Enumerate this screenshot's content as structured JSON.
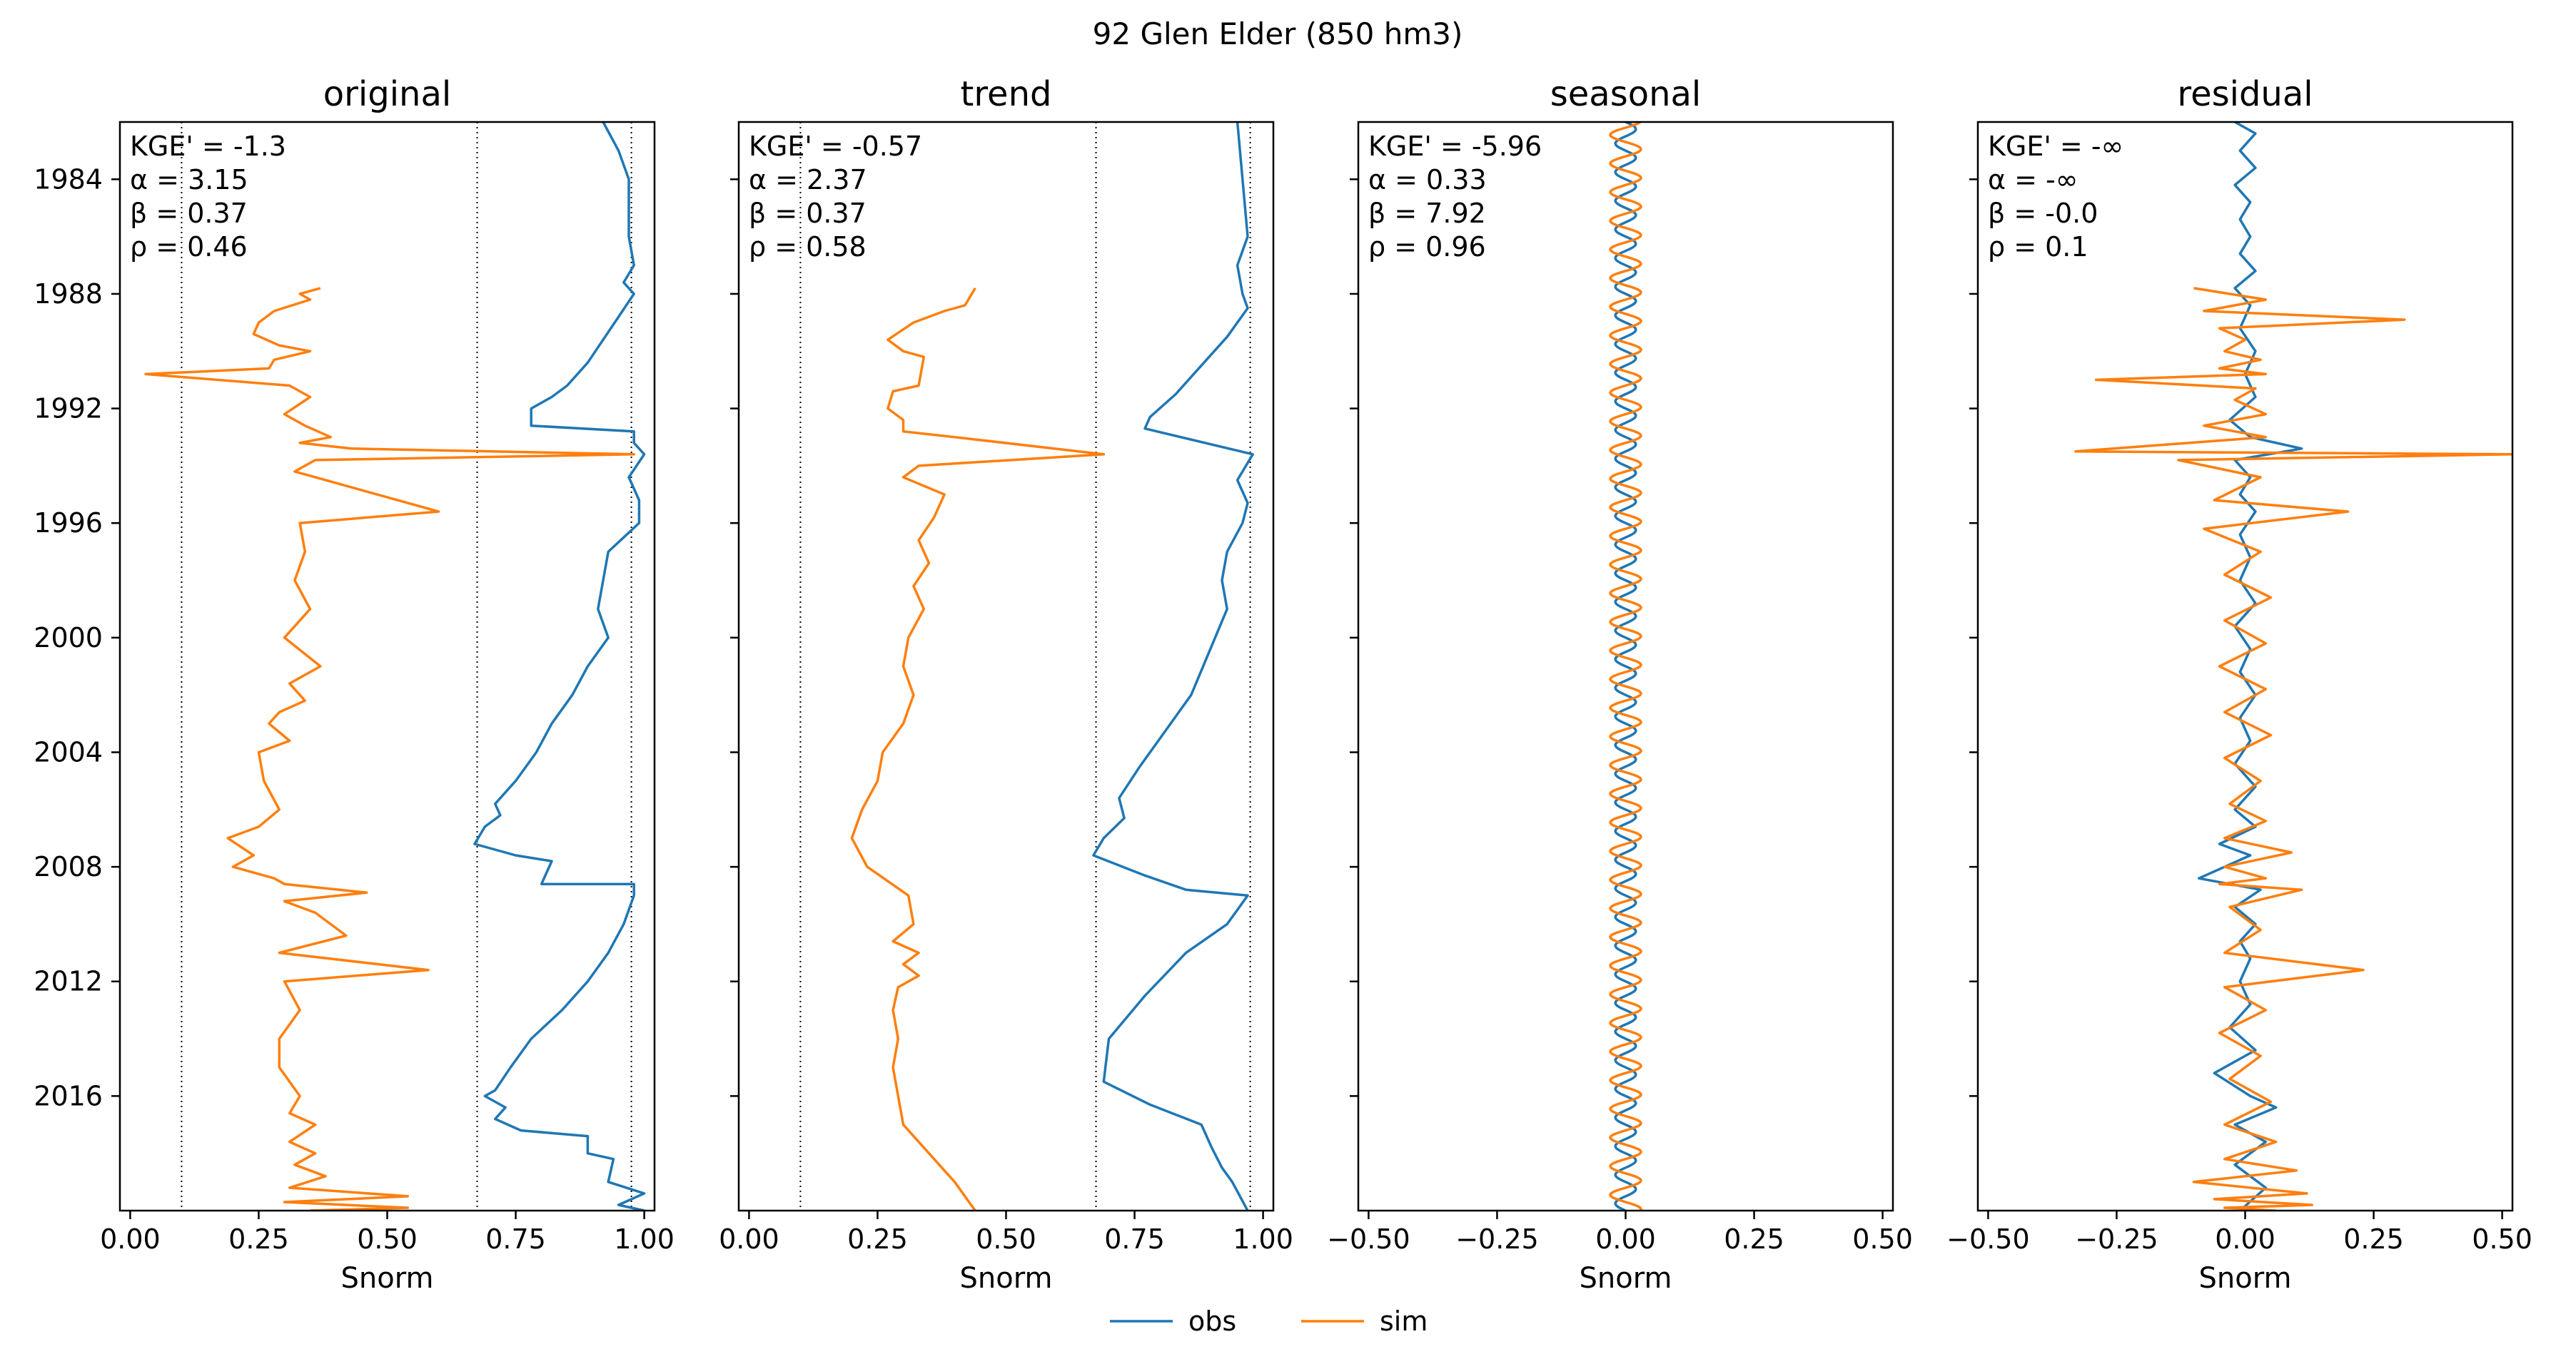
{
  "figure": {
    "title": "92  Glen Elder (850 hm3)"
  },
  "legend": {
    "placement": "bottom-center",
    "entries": [
      {
        "label": "obs",
        "color": "#1f77b4"
      },
      {
        "label": "sim",
        "color": "#ff7f0e"
      }
    ]
  },
  "chart_data": [
    {
      "type": "line",
      "title": "original",
      "xlabel": "Snorm",
      "ylabel": "",
      "xlim": [
        -0.02,
        1.02
      ],
      "ylim": [
        2020.0,
        1982.0
      ],
      "xticks": [
        "0.00",
        "0.25",
        "0.50",
        "0.75",
        "1.00"
      ],
      "xtick_values": [
        0,
        0.25,
        0.5,
        0.75,
        1.0
      ],
      "yticks": [
        "1984",
        "1988",
        "1992",
        "1996",
        "2000",
        "2004",
        "2008",
        "2012",
        "2016"
      ],
      "ytick_values": [
        1984,
        1988,
        1992,
        1996,
        2000,
        2004,
        2008,
        2012,
        2016
      ],
      "reference_lines": [
        0.1,
        0.675,
        0.975
      ],
      "stats": [
        "KGE' = -1.3",
        "α = 3.15",
        "β = 0.37",
        "ρ = 0.46"
      ],
      "series": [
        {
          "name": "obs",
          "color": "#1f77b4",
          "x": [
            0.92,
            0.95,
            0.97,
            0.97,
            0.97,
            0.98,
            0.96,
            0.98,
            0.95,
            0.92,
            0.89,
            0.85,
            0.82,
            0.78,
            0.78,
            0.98,
            0.98,
            1.0,
            0.97,
            0.99,
            0.99,
            0.96,
            0.93,
            0.92,
            0.91,
            0.93,
            0.91,
            0.89,
            0.86,
            0.82,
            0.79,
            0.75,
            0.71,
            0.72,
            0.69,
            0.67,
            0.75,
            0.82,
            0.8,
            0.98,
            0.98,
            0.96,
            0.93,
            0.89,
            0.84,
            0.78,
            0.74,
            0.71,
            0.69,
            0.73,
            0.71,
            0.76,
            0.89,
            0.89,
            0.94,
            0.93,
            1.0,
            0.95,
            1.0
          ],
          "y": [
            1982.0,
            1983.0,
            1984.0,
            1985.0,
            1986.0,
            1987.0,
            1987.6,
            1988.0,
            1988.8,
            1989.6,
            1990.4,
            1991.2,
            1991.6,
            1992.0,
            1992.6,
            1992.8,
            1993.2,
            1993.6,
            1994.4,
            1995.2,
            1996.0,
            1996.5,
            1997.0,
            1998.0,
            1999.0,
            2000.0,
            2000.5,
            2001.0,
            2002.0,
            2003.0,
            2004.0,
            2005.0,
            2005.8,
            2006.2,
            2006.6,
            2007.2,
            2007.6,
            2007.8,
            2008.6,
            2008.6,
            2009.0,
            2010.0,
            2011.0,
            2012.0,
            2013.0,
            2014.0,
            2015.0,
            2015.8,
            2016.0,
            2016.4,
            2016.8,
            2017.2,
            2017.4,
            2018.0,
            2018.2,
            2019.0,
            2019.4,
            2019.8,
            2020.0
          ]
        },
        {
          "name": "sim",
          "color": "#ff7f0e",
          "x": [
            0.37,
            0.33,
            0.35,
            0.28,
            0.25,
            0.24,
            0.29,
            0.35,
            0.28,
            0.27,
            0.03,
            0.31,
            0.35,
            0.3,
            0.34,
            0.39,
            0.33,
            0.43,
            0.98,
            0.36,
            0.32,
            0.6,
            0.33,
            0.34,
            0.32,
            0.35,
            0.3,
            0.37,
            0.31,
            0.34,
            0.29,
            0.27,
            0.31,
            0.25,
            0.26,
            0.29,
            0.25,
            0.19,
            0.24,
            0.2,
            0.28,
            0.3,
            0.46,
            0.3,
            0.36,
            0.42,
            0.29,
            0.58,
            0.3,
            0.33,
            0.29,
            0.29,
            0.33,
            0.31,
            0.36,
            0.31,
            0.36,
            0.32,
            0.38,
            0.31,
            0.54,
            0.3,
            0.54,
            0.35
          ],
          "y": [
            1987.8,
            1988.0,
            1988.2,
            1988.6,
            1989.0,
            1989.4,
            1989.8,
            1990.0,
            1990.3,
            1990.6,
            1990.8,
            1991.2,
            1991.6,
            1992.2,
            1992.6,
            1993.0,
            1993.2,
            1993.4,
            1993.6,
            1993.8,
            1994.2,
            1995.6,
            1996.0,
            1997.0,
            1998.0,
            1999.0,
            2000.0,
            2001.0,
            2001.6,
            2002.2,
            2002.6,
            2003.0,
            2003.6,
            2004.0,
            2005.0,
            2006.0,
            2006.6,
            2007.0,
            2007.6,
            2008.0,
            2008.4,
            2008.6,
            2008.9,
            2009.2,
            2009.6,
            2010.4,
            2011.0,
            2011.6,
            2012.0,
            2013.0,
            2014.0,
            2015.0,
            2016.0,
            2016.6,
            2017.0,
            2017.6,
            2018.0,
            2018.4,
            2018.8,
            2019.2,
            2019.5,
            2019.7,
            2019.9,
            2020.0
          ]
        }
      ]
    },
    {
      "type": "line",
      "title": "trend",
      "xlabel": "Snorm",
      "ylabel": "",
      "xlim": [
        -0.02,
        1.02
      ],
      "ylim": [
        2020.0,
        1982.0
      ],
      "xticks": [
        "0.00",
        "0.25",
        "0.50",
        "0.75",
        "1.00"
      ],
      "xtick_values": [
        0,
        0.25,
        0.5,
        0.75,
        1.0
      ],
      "yticks": [],
      "ytick_values": [
        1984,
        1988,
        1992,
        1996,
        2000,
        2004,
        2008,
        2012,
        2016
      ],
      "reference_lines": [
        0.1,
        0.675,
        0.975
      ],
      "stats": [
        "KGE' = -0.57",
        "α = 2.37",
        "β = 0.37",
        "ρ = 0.58"
      ],
      "series": [
        {
          "name": "obs",
          "color": "#1f77b4",
          "x": [
            0.95,
            0.96,
            0.97,
            0.95,
            0.96,
            0.97,
            0.93,
            0.88,
            0.83,
            0.78,
            0.77,
            0.98,
            0.95,
            0.97,
            0.96,
            0.93,
            0.92,
            0.93,
            0.86,
            0.76,
            0.72,
            0.73,
            0.69,
            0.67,
            0.77,
            0.85,
            0.97,
            0.93,
            0.85,
            0.77,
            0.7,
            0.69,
            0.78,
            0.88,
            0.9,
            0.92,
            0.94,
            0.97
          ],
          "y": [
            1982.0,
            1984.0,
            1986.0,
            1987.0,
            1988.0,
            1988.5,
            1989.5,
            1990.5,
            1991.5,
            1992.3,
            1992.7,
            1993.6,
            1994.5,
            1995.3,
            1996.0,
            1997.0,
            1998.0,
            1999.0,
            2002.0,
            2004.5,
            2005.6,
            2006.3,
            2007.0,
            2007.6,
            2008.3,
            2008.8,
            2009.0,
            2010.0,
            2011.0,
            2012.5,
            2014.0,
            2015.5,
            2016.3,
            2017.0,
            2017.8,
            2018.5,
            2019.0,
            2020.0
          ]
        },
        {
          "name": "sim",
          "color": "#ff7f0e",
          "x": [
            0.44,
            0.42,
            0.38,
            0.32,
            0.27,
            0.3,
            0.34,
            0.33,
            0.28,
            0.27,
            0.3,
            0.3,
            0.4,
            0.69,
            0.33,
            0.3,
            0.38,
            0.36,
            0.33,
            0.35,
            0.32,
            0.34,
            0.31,
            0.3,
            0.32,
            0.3,
            0.26,
            0.25,
            0.22,
            0.2,
            0.23,
            0.31,
            0.32,
            0.28,
            0.33,
            0.3,
            0.33,
            0.29,
            0.28,
            0.29,
            0.28,
            0.29,
            0.3,
            0.35,
            0.4,
            0.44
          ],
          "y": [
            1987.8,
            1988.4,
            1988.6,
            1989.0,
            1989.6,
            1990.0,
            1990.2,
            1991.2,
            1991.4,
            1992.0,
            1992.4,
            1992.8,
            1993.0,
            1993.6,
            1994.0,
            1994.4,
            1995.0,
            1995.8,
            1996.6,
            1997.4,
            1998.2,
            1999.0,
            2000.0,
            2001.0,
            2002.0,
            2003.0,
            2004.0,
            2005.0,
            2006.0,
            2007.0,
            2008.0,
            2009.0,
            2010.0,
            2010.6,
            2011.0,
            2011.4,
            2011.8,
            2012.2,
            2013.0,
            2014.0,
            2015.0,
            2016.0,
            2017.0,
            2018.0,
            2019.0,
            2020.0
          ]
        }
      ]
    },
    {
      "type": "line",
      "title": "seasonal",
      "xlabel": "Snorm",
      "ylabel": "",
      "xlim": [
        -0.52,
        0.52
      ],
      "ylim": [
        2020.0,
        1982.0
      ],
      "xticks": [
        "−0.50",
        "−0.25",
        "0.00",
        "0.25",
        "0.50"
      ],
      "xtick_values": [
        -0.5,
        -0.25,
        0,
        0.25,
        0.5
      ],
      "yticks": [],
      "ytick_values": [
        1984,
        1988,
        1992,
        1996,
        2000,
        2004,
        2008,
        2012,
        2016
      ],
      "reference_lines": [],
      "stats": [
        "KGE' = -5.96",
        "α = 0.33",
        "β = 7.92",
        "ρ = 0.96"
      ],
      "series": [
        {
          "name": "obs",
          "color": "#1f77b4",
          "function": "annual-sine",
          "amplitude": 0.02,
          "phase": 0.0,
          "y_range": [
            1982,
            2020
          ]
        },
        {
          "name": "sim",
          "color": "#ff7f0e",
          "function": "annual-sine",
          "amplitude": 0.03,
          "phase": 0.3,
          "y_range": [
            1982,
            2020
          ]
        }
      ]
    },
    {
      "type": "line",
      "title": "residual",
      "xlabel": "Snorm",
      "ylabel": "",
      "xlim": [
        -0.52,
        0.52
      ],
      "ylim": [
        2020.0,
        1982.0
      ],
      "xticks": [
        "−0.50",
        "−0.25",
        "0.00",
        "0.25",
        "0.50"
      ],
      "xtick_values": [
        -0.5,
        -0.25,
        0,
        0.25,
        0.5
      ],
      "yticks": [],
      "ytick_values": [
        1984,
        1988,
        1992,
        1996,
        2000,
        2004,
        2008,
        2012,
        2016
      ],
      "reference_lines": [],
      "stats": [
        "KGE' = -∞",
        "α = -∞",
        "β = -0.0",
        "ρ = 0.1"
      ],
      "series": [
        {
          "name": "obs",
          "color": "#1f77b4",
          "x": [
            -0.02,
            0.02,
            -0.01,
            0.02,
            -0.02,
            0.01,
            -0.01,
            0.01,
            -0.01,
            0.02,
            -0.02,
            0.01,
            -0.01,
            0.02,
            0.0,
            0.02,
            -0.03,
            0.01,
            0.11,
            -0.02,
            0.01,
            -0.01,
            0.02,
            -0.01,
            0.01,
            -0.01,
            0.02,
            -0.02,
            0.01,
            -0.01,
            0.02,
            -0.01,
            0.01,
            -0.02,
            0.02,
            -0.02,
            0.02,
            -0.05,
            0.01,
            -0.09,
            0.03,
            -0.02,
            0.02,
            -0.01,
            0.01,
            -0.01,
            0.01,
            -0.03,
            0.02,
            -0.06,
            0.01,
            0.06,
            -0.02,
            0.04,
            -0.02,
            0.04,
            -0.01
          ],
          "y": [
            1982.0,
            1982.4,
            1983.0,
            1983.6,
            1984.2,
            1984.8,
            1985.4,
            1986.0,
            1986.6,
            1987.2,
            1987.8,
            1988.4,
            1989.2,
            1990.0,
            1990.8,
            1991.6,
            1992.4,
            1993.0,
            1993.4,
            1993.8,
            1994.4,
            1995.0,
            1995.6,
            1996.4,
            1997.2,
            1998.0,
            1998.8,
            1999.6,
            2000.4,
            2001.2,
            2002.0,
            2002.8,
            2003.6,
            2004.4,
            2005.2,
            2006.0,
            2006.6,
            2007.2,
            2007.6,
            2008.4,
            2008.8,
            2009.4,
            2010.0,
            2010.6,
            2011.2,
            2012.0,
            2012.8,
            2013.6,
            2014.4,
            2015.2,
            2016.0,
            2016.4,
            2017.0,
            2017.6,
            2018.4,
            2019.2,
            2020.0
          ]
        },
        {
          "name": "sim",
          "color": "#ff7f0e",
          "x": [
            -0.1,
            0.04,
            -0.08,
            0.31,
            -0.05,
            0.0,
            -0.04,
            0.03,
            -0.05,
            0.04,
            -0.29,
            0.02,
            -0.02,
            0.04,
            -0.08,
            0.04,
            -0.33,
            0.52,
            -0.13,
            0.03,
            -0.06,
            0.2,
            -0.08,
            0.03,
            -0.04,
            0.05,
            -0.04,
            0.04,
            -0.05,
            0.04,
            -0.04,
            0.05,
            -0.04,
            0.03,
            -0.03,
            0.04,
            -0.04,
            0.09,
            -0.04,
            0.04,
            -0.05,
            0.11,
            -0.03,
            0.03,
            -0.04,
            0.23,
            -0.04,
            0.04,
            -0.05,
            0.03,
            -0.03,
            0.05,
            -0.04,
            0.06,
            -0.04,
            0.1,
            -0.1,
            0.12,
            -0.06,
            0.13,
            -0.04,
            0.06
          ],
          "y": [
            1987.8,
            1988.2,
            1988.6,
            1988.9,
            1989.2,
            1989.6,
            1990.0,
            1990.3,
            1990.6,
            1990.8,
            1991.0,
            1991.3,
            1991.7,
            1992.2,
            1992.6,
            1993.0,
            1993.5,
            1993.6,
            1993.8,
            1994.4,
            1995.2,
            1995.6,
            1996.2,
            1997.0,
            1997.8,
            1998.6,
            1999.4,
            2000.2,
            2001.0,
            2001.8,
            2002.6,
            2003.4,
            2004.2,
            2005.0,
            2005.8,
            2006.4,
            2007.0,
            2007.5,
            2008.0,
            2008.4,
            2008.6,
            2008.8,
            2009.4,
            2010.2,
            2011.0,
            2011.6,
            2012.2,
            2013.0,
            2013.8,
            2014.6,
            2015.4,
            2016.2,
            2017.0,
            2017.6,
            2018.2,
            2018.6,
            2019.0,
            2019.4,
            2019.6,
            2019.8,
            2019.9,
            2020.0
          ]
        }
      ]
    }
  ]
}
